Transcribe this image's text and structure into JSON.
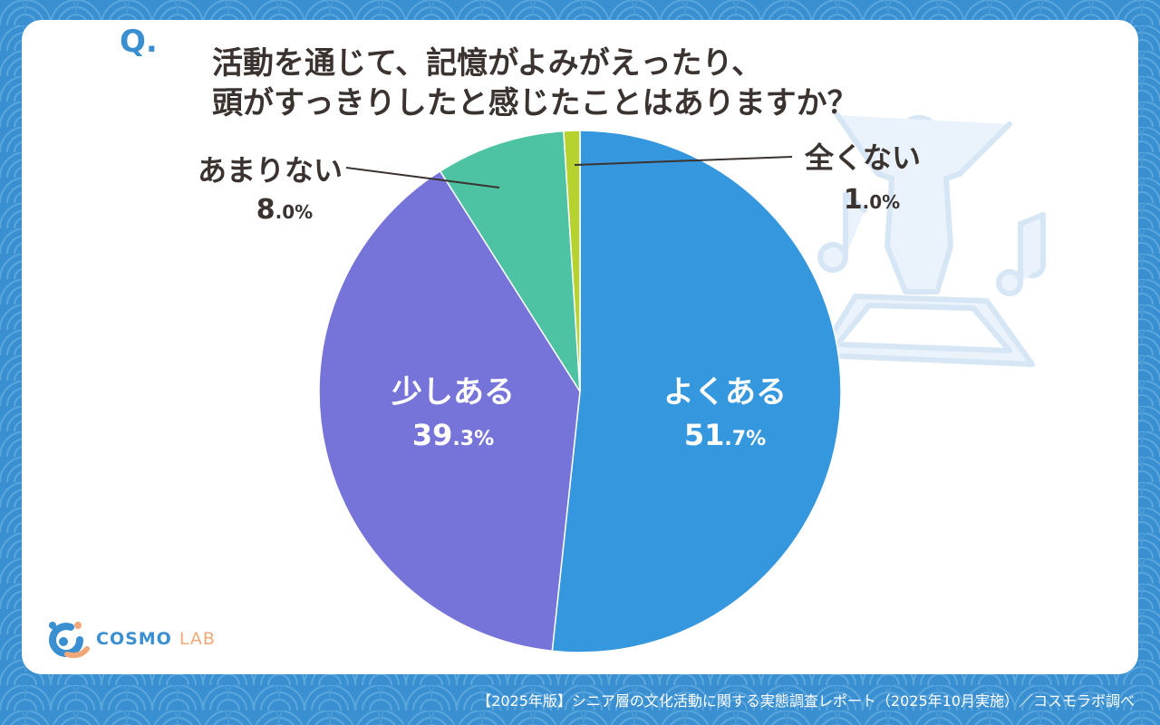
{
  "question": {
    "mark": "Q.",
    "line1": "活動を通じて、記憶がよみがえったり、",
    "line2": "頭がすっきりしたと感じたことはありますか？"
  },
  "chart_data": {
    "type": "pie",
    "title": "活動を通じて、記憶がよみがえったり、頭がすっきりしたと感じたことはありますか？",
    "slices": [
      {
        "label": "よくある",
        "value": 51.7,
        "int": "51",
        "dec": ".7%",
        "color": "#3597dd"
      },
      {
        "label": "少しある",
        "value": 39.3,
        "int": "39",
        "dec": ".3%",
        "color": "#7774d9"
      },
      {
        "label": "あまりない",
        "value": 8.0,
        "int": "8",
        "dec": ".0%",
        "color": "#4dc3a3"
      },
      {
        "label": "全くない",
        "value": 1.0,
        "int": "1",
        "dec": ".0%",
        "color": "#b6d22e"
      }
    ]
  },
  "logo": {
    "main": "COSMO",
    "sub": "LAB"
  },
  "footer": {
    "text": "【2025年版】シニア層の文化活動に関する実態調査レポート（2025年10月実施）／コスモラボ調べ"
  },
  "colors": {
    "accent": "#3a8fd0",
    "text": "#3b3330"
  },
  "icons": [
    "person-cheering-icon",
    "music-note-icon",
    "logo-mark-icon"
  ]
}
